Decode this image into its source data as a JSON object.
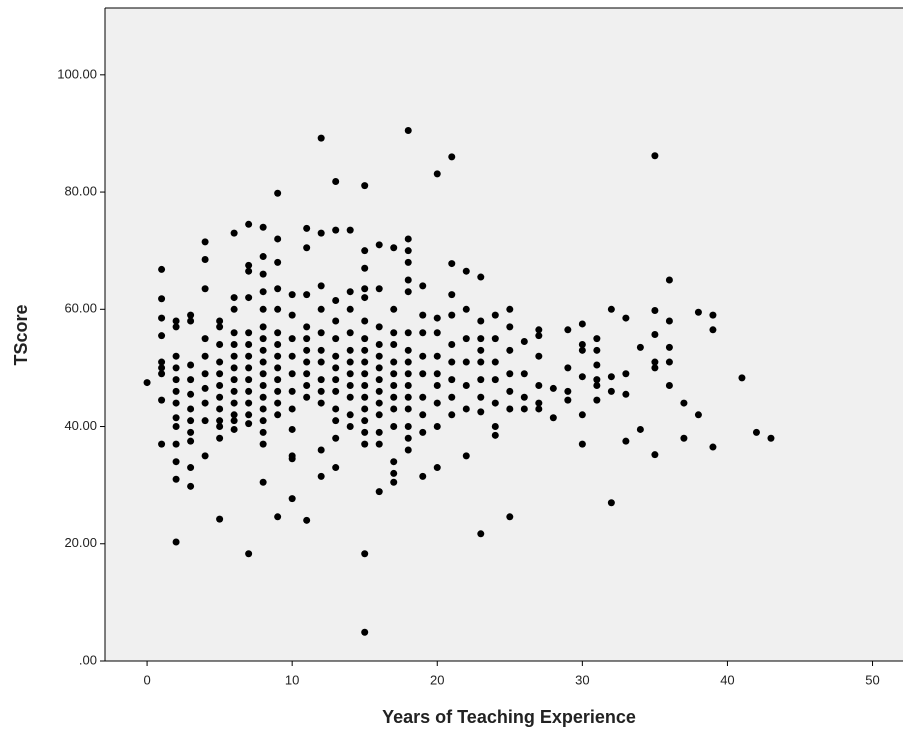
{
  "chart_data": {
    "type": "scatter",
    "x_label": "Years of Teaching Experience",
    "y_label": "TScore",
    "xlim": [
      -2.9,
      52.1
    ],
    "ylim": [
      0,
      111.4
    ],
    "xticks": [
      0,
      10,
      20,
      30,
      40,
      50
    ],
    "yticks": [
      {
        "value": 0,
        "label": ".00"
      },
      {
        "value": 20,
        "label": "20.00"
      },
      {
        "value": 40,
        "label": "40.00"
      },
      {
        "value": 60,
        "label": "60.00"
      },
      {
        "value": 80,
        "label": "80.00"
      },
      {
        "value": 100,
        "label": "100.00"
      }
    ],
    "color": "#000000",
    "x": [
      0,
      1,
      1,
      1,
      1,
      1,
      1,
      1,
      1,
      1,
      2,
      2,
      2,
      2,
      2,
      2,
      2,
      2,
      2,
      2,
      2,
      2,
      2,
      3,
      3,
      3,
      3,
      3,
      3,
      3,
      3,
      3,
      3,
      3,
      4,
      4,
      4,
      4,
      4,
      4,
      4,
      4,
      4,
      4,
      5,
      5,
      5,
      5,
      5,
      5,
      5,
      5,
      5,
      5,
      5,
      5,
      6,
      6,
      6,
      6,
      6,
      6,
      6,
      6,
      6,
      6,
      6,
      6,
      6,
      7,
      7,
      7,
      7,
      7,
      7,
      7,
      7,
      7,
      7,
      7,
      7,
      7,
      7,
      8,
      8,
      8,
      8,
      8,
      8,
      8,
      8,
      8,
      8,
      8,
      8,
      8,
      8,
      8,
      8,
      8,
      9,
      9,
      9,
      9,
      9,
      9,
      9,
      9,
      9,
      9,
      9,
      9,
      9,
      9,
      10,
      10,
      10,
      10,
      10,
      10,
      10,
      10,
      10,
      10,
      10,
      11,
      11,
      11,
      11,
      11,
      11,
      11,
      11,
      11,
      11,
      11,
      12,
      12,
      12,
      12,
      12,
      12,
      12,
      12,
      12,
      12,
      12,
      12,
      13,
      13,
      13,
      13,
      13,
      13,
      13,
      13,
      13,
      13,
      13,
      13,
      13,
      14,
      14,
      14,
      14,
      14,
      14,
      14,
      14,
      14,
      14,
      14,
      15,
      15,
      15,
      15,
      15,
      15,
      15,
      15,
      15,
      15,
      15,
      15,
      15,
      15,
      15,
      15,
      15,
      15,
      16,
      16,
      16,
      16,
      16,
      16,
      16,
      16,
      16,
      16,
      16,
      16,
      16,
      17,
      17,
      17,
      17,
      17,
      17,
      17,
      17,
      17,
      17,
      17,
      17,
      17,
      18,
      18,
      18,
      18,
      18,
      18,
      18,
      18,
      18,
      18,
      18,
      18,
      18,
      18,
      18,
      18,
      19,
      19,
      19,
      19,
      19,
      19,
      19,
      19,
      19,
      20,
      20,
      20,
      20,
      20,
      20,
      20,
      20,
      20,
      21,
      21,
      21,
      21,
      21,
      21,
      21,
      21,
      21,
      22,
      22,
      22,
      22,
      22,
      22,
      22,
      23,
      23,
      23,
      23,
      23,
      23,
      23,
      23,
      23,
      24,
      24,
      24,
      24,
      24,
      24,
      24,
      25,
      25,
      25,
      25,
      25,
      25,
      25,
      26,
      26,
      26,
      26,
      27,
      27,
      27,
      27,
      27,
      27,
      28,
      28,
      29,
      29,
      29,
      29,
      30,
      30,
      30,
      30,
      30,
      30,
      31,
      31,
      31,
      31,
      31,
      31,
      32,
      32,
      32,
      32,
      33,
      33,
      33,
      33,
      34,
      34,
      35,
      35,
      35,
      35,
      35,
      35,
      36,
      36,
      36,
      36,
      36,
      37,
      37,
      38,
      38,
      39,
      39,
      39,
      41,
      42,
      43
    ],
    "values": [
      47.5,
      66.8,
      61.8,
      58.5,
      55.5,
      51,
      50,
      49,
      44.5,
      37,
      58,
      57,
      52,
      50,
      48,
      46,
      44,
      41.5,
      40,
      37,
      34,
      31,
      20.3,
      59,
      58,
      50.5,
      48,
      45.5,
      43,
      41,
      39,
      37.5,
      33,
      29.8,
      71.5,
      68.5,
      63.5,
      55,
      52,
      49,
      46.5,
      44,
      41,
      35,
      58,
      57,
      54,
      51,
      49,
      47,
      45,
      43,
      41,
      40,
      38,
      24.2,
      73,
      62,
      60,
      56,
      54,
      52,
      50,
      48,
      46,
      44,
      42,
      41,
      39.5,
      74.5,
      67.5,
      66.5,
      62,
      56,
      54,
      52,
      50,
      48,
      46,
      44,
      42,
      40.5,
      18.3,
      74,
      69,
      66,
      63,
      60,
      57,
      55,
      53,
      51,
      49,
      47,
      45,
      43,
      41,
      39,
      37,
      30.5,
      79.8,
      72,
      68,
      63.5,
      60,
      56,
      54,
      52,
      50,
      48,
      46,
      44,
      42,
      24.6,
      62.5,
      59,
      55,
      52,
      49,
      46,
      43,
      39.5,
      35,
      34.5,
      27.7,
      73.8,
      70.5,
      62.5,
      57,
      55,
      53,
      51,
      49,
      47,
      45,
      24,
      89.2,
      73,
      64,
      60,
      56,
      53,
      51,
      48,
      46,
      44,
      36,
      31.5,
      81.8,
      73.5,
      61.5,
      58,
      55,
      52,
      50,
      48,
      46,
      43,
      41,
      38,
      33,
      73.5,
      63,
      60,
      56,
      53,
      51,
      49,
      47,
      45,
      42,
      40,
      81.1,
      70,
      67,
      63.5,
      62,
      58,
      55,
      53,
      51,
      49,
      47,
      45,
      43,
      41,
      39,
      37,
      18.3,
      4.9,
      71,
      63.5,
      57,
      54,
      52,
      50,
      48,
      46,
      44,
      42,
      39,
      37,
      28.9,
      70.5,
      60,
      56,
      54,
      51,
      49,
      47,
      45,
      43,
      40,
      34,
      32,
      30.5,
      90.5,
      72,
      70,
      68,
      65,
      63,
      56,
      53,
      51,
      49,
      47,
      45,
      43,
      40,
      38,
      36,
      64,
      59,
      56,
      52,
      49,
      45,
      42,
      39,
      31.5,
      83.1,
      58.5,
      56,
      52,
      49,
      47,
      44,
      40,
      33,
      86,
      67.8,
      62.5,
      59,
      54,
      51,
      48,
      45,
      42,
      66.5,
      60,
      55,
      51,
      47,
      43,
      35,
      65.5,
      58,
      55,
      53,
      51,
      48,
      45,
      42.5,
      21.7,
      59,
      55,
      51,
      48,
      44,
      40,
      38.5,
      60,
      57,
      53,
      49,
      46,
      43,
      24.6,
      54.5,
      49,
      45,
      43,
      56.5,
      55.5,
      52,
      47,
      44,
      43,
      46.5,
      41.5,
      56.5,
      50,
      46,
      44.5,
      57.5,
      54,
      53,
      48.5,
      42,
      37,
      55,
      53,
      50.5,
      48,
      47,
      44.5,
      60,
      48.5,
      46,
      27,
      58.5,
      49,
      45.5,
      37.5,
      53.5,
      39.5,
      86.2,
      59.8,
      55.7,
      51,
      50,
      35.2,
      65,
      58,
      53.5,
      51,
      47,
      44,
      38,
      59.5,
      42,
      59,
      56.5,
      36.5,
      48.3,
      39,
      38
    ]
  }
}
